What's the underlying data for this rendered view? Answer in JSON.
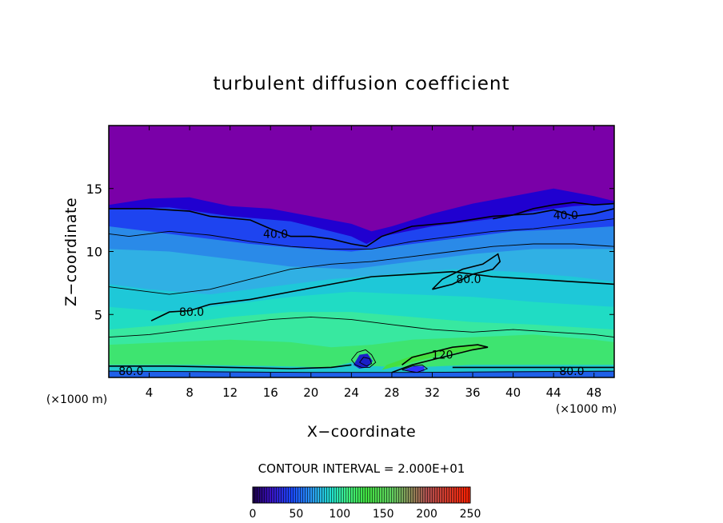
{
  "chart_data": {
    "type": "heatmap",
    "title": "turbulent diffusion coefficient",
    "xlabel": "X−coordinate",
    "ylabel": "Z−coordinate",
    "x_unit_left": "(×1000 m)",
    "x_unit_right": "(×1000 m)",
    "xlim": [
      0,
      50
    ],
    "ylim": [
      0,
      20
    ],
    "x_ticks": [
      4,
      8,
      12,
      16,
      20,
      24,
      28,
      32,
      36,
      40,
      44,
      48
    ],
    "x_tick_labels": [
      "4",
      "8",
      "12",
      "16",
      "20",
      "24",
      "28",
      "32",
      "36",
      "40",
      "44",
      "48"
    ],
    "y_ticks": [
      5,
      10,
      15
    ],
    "y_tick_labels": [
      "5",
      "10",
      "15"
    ],
    "contour_interval_text": "CONTOUR INTERVAL = 2.000E+01",
    "colorbar": {
      "min": 0,
      "max": 250,
      "ticks": [
        0,
        50,
        100,
        150,
        200,
        250
      ],
      "tick_labels": [
        "0",
        "50",
        "100",
        "150",
        "200",
        "250"
      ]
    },
    "color_stops": [
      {
        "v": 0,
        "c": "#1a0046"
      },
      {
        "v": 20,
        "c": "#3a10c0"
      },
      {
        "v": 45,
        "c": "#1a48ff"
      },
      {
        "v": 70,
        "c": "#2aa0f0"
      },
      {
        "v": 90,
        "c": "#20e0d0"
      },
      {
        "v": 110,
        "c": "#40f080"
      },
      {
        "v": 130,
        "c": "#40e040"
      },
      {
        "v": 160,
        "c": "#60d060"
      },
      {
        "v": 200,
        "c": "#b05050"
      },
      {
        "v": 250,
        "c": "#ff2000"
      }
    ],
    "bands": [
      {
        "level": 0,
        "color": "#7a00a8",
        "top": [
          [
            0,
            20
          ],
          [
            50,
            20
          ]
        ]
      },
      {
        "level": 10,
        "color": "#2000d0",
        "top": [
          [
            0,
            13.7
          ],
          [
            4,
            14.2
          ],
          [
            8,
            14.3
          ],
          [
            12,
            13.6
          ],
          [
            16,
            13.4
          ],
          [
            20,
            12.8
          ],
          [
            24,
            12.2
          ],
          [
            26,
            11.6
          ],
          [
            28,
            12.0
          ],
          [
            32,
            13.0
          ],
          [
            36,
            13.8
          ],
          [
            40,
            14.4
          ],
          [
            44,
            15.0
          ],
          [
            48,
            14.4
          ],
          [
            50,
            14.0
          ]
        ]
      },
      {
        "level": 40,
        "color": "#1e44f0",
        "top": [
          [
            0,
            13.4
          ],
          [
            6,
            13.5
          ],
          [
            12,
            12.8
          ],
          [
            18,
            12.4
          ],
          [
            24,
            11.2
          ],
          [
            25.5,
            10.6
          ],
          [
            27,
            11.2
          ],
          [
            32,
            12.0
          ],
          [
            38,
            12.6
          ],
          [
            42,
            13.2
          ],
          [
            46,
            13.6
          ],
          [
            50,
            13.8
          ]
        ]
      },
      {
        "level": 60,
        "color": "#2a8ae8",
        "top": [
          [
            0,
            12.0
          ],
          [
            8,
            11.2
          ],
          [
            14,
            10.6
          ],
          [
            20,
            10.2
          ],
          [
            24,
            10.0
          ],
          [
            28,
            10.4
          ],
          [
            34,
            11.0
          ],
          [
            40,
            11.6
          ],
          [
            46,
            11.8
          ],
          [
            50,
            12.0
          ]
        ]
      },
      {
        "level": 75,
        "color": "#30b0e4",
        "top": [
          [
            0,
            10.2
          ],
          [
            6,
            10.0
          ],
          [
            12,
            9.4
          ],
          [
            18,
            8.8
          ],
          [
            24,
            8.6
          ],
          [
            30,
            9.2
          ],
          [
            36,
            9.8
          ],
          [
            42,
            10.2
          ],
          [
            50,
            10.2
          ]
        ]
      },
      {
        "level": 85,
        "color": "#1ec8d8",
        "top": [
          [
            0,
            7.4
          ],
          [
            4,
            7.0
          ],
          [
            10,
            6.6
          ],
          [
            16,
            7.2
          ],
          [
            22,
            7.8
          ],
          [
            28,
            8.2
          ],
          [
            34,
            8.6
          ],
          [
            40,
            8.4
          ],
          [
            46,
            8.0
          ],
          [
            50,
            7.6
          ]
        ]
      },
      {
        "level": 95,
        "color": "#20dcc4",
        "top": [
          [
            0,
            5.6
          ],
          [
            6,
            5.2
          ],
          [
            12,
            5.8
          ],
          [
            18,
            6.4
          ],
          [
            24,
            6.8
          ],
          [
            30,
            6.6
          ],
          [
            36,
            6.4
          ],
          [
            42,
            6.0
          ],
          [
            50,
            5.6
          ]
        ]
      },
      {
        "level": 105,
        "color": "#38e8a0",
        "top": [
          [
            0,
            3.8
          ],
          [
            6,
            4.2
          ],
          [
            12,
            4.8
          ],
          [
            18,
            5.2
          ],
          [
            24,
            5.2
          ],
          [
            30,
            4.8
          ],
          [
            36,
            4.4
          ],
          [
            42,
            4.2
          ],
          [
            50,
            3.8
          ]
        ]
      },
      {
        "level": 120,
        "color": "#3ee470",
        "top": [
          [
            0,
            2.6
          ],
          [
            6,
            2.8
          ],
          [
            12,
            3.0
          ],
          [
            18,
            2.8
          ],
          [
            22,
            2.4
          ],
          [
            26,
            2.6
          ],
          [
            30,
            3.0
          ],
          [
            36,
            3.2
          ],
          [
            42,
            3.4
          ],
          [
            48,
            3.0
          ],
          [
            50,
            2.8
          ]
        ]
      },
      {
        "level": 90,
        "color": "#22c8d0",
        "top": [
          [
            0,
            1.0
          ],
          [
            8,
            1.0
          ],
          [
            16,
            0.9
          ],
          [
            22,
            0.8
          ],
          [
            24,
            1.2
          ],
          [
            26,
            0.9
          ],
          [
            30,
            0.8
          ],
          [
            36,
            1.0
          ],
          [
            42,
            1.0
          ],
          [
            50,
            1.0
          ]
        ]
      },
      {
        "level": 40,
        "color": "#2060e8",
        "top": [
          [
            0,
            0.5
          ],
          [
            10,
            0.5
          ],
          [
            20,
            0.4
          ],
          [
            30,
            0.4
          ],
          [
            40,
            0.5
          ],
          [
            50,
            0.5
          ]
        ]
      }
    ],
    "contours": [
      {
        "label": "40.0",
        "label_at": [
          16.5,
          11.4
        ],
        "points": [
          [
            0,
            13.4
          ],
          [
            4,
            13.4
          ],
          [
            8,
            13.2
          ],
          [
            10,
            12.8
          ],
          [
            14,
            12.5
          ],
          [
            16,
            11.8
          ],
          [
            18,
            11.2
          ],
          [
            20,
            11.2
          ],
          [
            22,
            11.0
          ],
          [
            24,
            10.6
          ],
          [
            25.5,
            10.4
          ],
          [
            27,
            11.2
          ],
          [
            30,
            12.0
          ],
          [
            34,
            12.3
          ],
          [
            38,
            12.8
          ],
          [
            42,
            13.0
          ],
          [
            44,
            13.3
          ],
          [
            46,
            12.8
          ],
          [
            48,
            13.0
          ],
          [
            50,
            13.4
          ]
        ]
      },
      {
        "label": "40.0",
        "label_at": [
          45.2,
          12.9
        ],
        "points": [
          [
            38,
            12.6
          ],
          [
            40,
            12.9
          ],
          [
            42,
            13.4
          ],
          [
            44,
            13.7
          ],
          [
            46,
            13.9
          ],
          [
            48,
            13.7
          ],
          [
            50,
            13.8
          ]
        ]
      },
      {
        "label": "80.0",
        "label_at": [
          8.2,
          5.2
        ],
        "points": [
          [
            4.2,
            4.5
          ],
          [
            6,
            5.2
          ],
          [
            8,
            5.3
          ],
          [
            10,
            5.8
          ],
          [
            14,
            6.2
          ],
          [
            18,
            6.8
          ],
          [
            22,
            7.4
          ],
          [
            26,
            8.0
          ],
          [
            30,
            8.2
          ],
          [
            34,
            8.4
          ],
          [
            38,
            8.0
          ],
          [
            42,
            7.8
          ],
          [
            46,
            7.6
          ],
          [
            50,
            7.4
          ]
        ]
      },
      {
        "label": "80.0",
        "label_at": [
          35.6,
          7.8
        ],
        "points": [
          [
            32,
            7.0
          ],
          [
            34,
            7.4
          ],
          [
            36,
            8.2
          ],
          [
            38,
            8.6
          ],
          [
            38.7,
            9.2
          ],
          [
            38.5,
            9.8
          ],
          [
            37,
            9.0
          ],
          [
            35,
            8.6
          ],
          [
            33,
            7.8
          ],
          [
            32,
            7.0
          ]
        ]
      },
      {
        "label": "",
        "label_at": [
          0,
          0
        ],
        "points": [
          [
            0,
            7.2
          ],
          [
            4,
            6.8
          ],
          [
            6,
            6.6
          ],
          [
            10,
            7.0
          ],
          [
            14,
            7.8
          ],
          [
            18,
            8.6
          ],
          [
            22,
            9.0
          ],
          [
            26,
            9.2
          ],
          [
            30,
            9.6
          ],
          [
            34,
            10.0
          ],
          [
            38,
            10.4
          ],
          [
            42,
            10.6
          ],
          [
            46,
            10.6
          ],
          [
            50,
            10.4
          ]
        ]
      },
      {
        "label": "",
        "label_at": [
          0,
          0
        ],
        "points": [
          [
            0,
            11.4
          ],
          [
            2,
            11.2
          ],
          [
            6,
            11.6
          ],
          [
            10,
            11.3
          ],
          [
            14,
            10.8
          ],
          [
            18,
            10.4
          ],
          [
            22,
            10.2
          ],
          [
            26,
            10.2
          ],
          [
            30,
            10.8
          ],
          [
            34,
            11.2
          ],
          [
            38,
            11.6
          ],
          [
            42,
            11.8
          ],
          [
            46,
            12.2
          ],
          [
            50,
            12.6
          ]
        ]
      },
      {
        "label": "",
        "label_at": [
          0,
          0
        ],
        "points": [
          [
            0,
            3.2
          ],
          [
            4,
            3.4
          ],
          [
            8,
            3.8
          ],
          [
            12,
            4.2
          ],
          [
            16,
            4.6
          ],
          [
            20,
            4.8
          ],
          [
            24,
            4.6
          ],
          [
            28,
            4.2
          ],
          [
            32,
            3.8
          ],
          [
            36,
            3.6
          ],
          [
            40,
            3.8
          ],
          [
            44,
            3.6
          ],
          [
            48,
            3.4
          ],
          [
            50,
            3.2
          ]
        ]
      },
      {
        "label": "120",
        "label_at": [
          33.0,
          1.8
        ],
        "points": [
          [
            28,
            0.4
          ],
          [
            30,
            1.0
          ],
          [
            32,
            1.4
          ],
          [
            34,
            1.8
          ],
          [
            36,
            2.2
          ],
          [
            37.5,
            2.4
          ],
          [
            36.5,
            2.6
          ],
          [
            34,
            2.4
          ],
          [
            32,
            2.0
          ],
          [
            30,
            1.6
          ],
          [
            29,
            1.0
          ]
        ]
      },
      {
        "label": "",
        "label_at": [
          0,
          0
        ],
        "points": [
          [
            24,
            1.4
          ],
          [
            24.6,
            2.0
          ],
          [
            25.4,
            2.2
          ],
          [
            26,
            1.8
          ],
          [
            26.4,
            1.2
          ],
          [
            25.8,
            0.8
          ],
          [
            25,
            0.8
          ],
          [
            24.4,
            1.0
          ],
          [
            24,
            1.4
          ]
        ]
      },
      {
        "label": "",
        "label_at": [
          0,
          0
        ],
        "points": [
          [
            24.8,
            1.2
          ],
          [
            25.2,
            1.6
          ],
          [
            25.8,
            1.5
          ],
          [
            26,
            1.1
          ],
          [
            25.5,
            0.9
          ],
          [
            24.8,
            1.2
          ]
        ]
      },
      {
        "label": "",
        "label_at": [
          0,
          0
        ],
        "points": [
          [
            29,
            0.6
          ],
          [
            30,
            0.9
          ],
          [
            31,
            1.0
          ],
          [
            31.5,
            0.7
          ],
          [
            30.5,
            0.4
          ],
          [
            29,
            0.6
          ]
        ]
      },
      {
        "label": "80.0",
        "label_at": [
          2.2,
          0.5
        ],
        "points": [
          [
            0,
            0.9
          ],
          [
            6,
            0.9
          ],
          [
            12,
            0.8
          ],
          [
            18,
            0.7
          ],
          [
            22,
            0.8
          ],
          [
            24,
            1.0
          ]
        ]
      },
      {
        "label": "80.0",
        "label_at": [
          45.8,
          0.5
        ],
        "points": [
          [
            34,
            0.8
          ],
          [
            38,
            0.8
          ],
          [
            42,
            0.8
          ],
          [
            46,
            0.8
          ],
          [
            50,
            0.8
          ]
        ]
      },
      {
        "label": "",
        "label_at": [
          0,
          0
        ],
        "points": [
          [
            0,
            0.5
          ],
          [
            10,
            0.45
          ],
          [
            20,
            0.4
          ],
          [
            30,
            0.4
          ],
          [
            40,
            0.45
          ],
          [
            50,
            0.5
          ]
        ]
      }
    ],
    "patches": [
      {
        "color": "#1a20c8",
        "points": [
          [
            24.2,
            1.0
          ],
          [
            24.8,
            1.8
          ],
          [
            25.6,
            1.9
          ],
          [
            26.1,
            1.3
          ],
          [
            25.6,
            0.8
          ],
          [
            24.8,
            0.7
          ]
        ]
      },
      {
        "color": "#3030ff",
        "points": [
          [
            29.2,
            0.6
          ],
          [
            30.2,
            0.9
          ],
          [
            31.2,
            0.9
          ],
          [
            31.2,
            0.5
          ],
          [
            30.2,
            0.35
          ]
        ]
      },
      {
        "color": "#45e040",
        "points": [
          [
            27,
            0.6
          ],
          [
            30,
            1.2
          ],
          [
            33,
            1.8
          ],
          [
            36,
            2.2
          ],
          [
            37.5,
            2.4
          ],
          [
            36,
            2.6
          ],
          [
            33,
            2.2
          ],
          [
            30,
            1.7
          ],
          [
            27.5,
            1.0
          ]
        ]
      }
    ]
  }
}
